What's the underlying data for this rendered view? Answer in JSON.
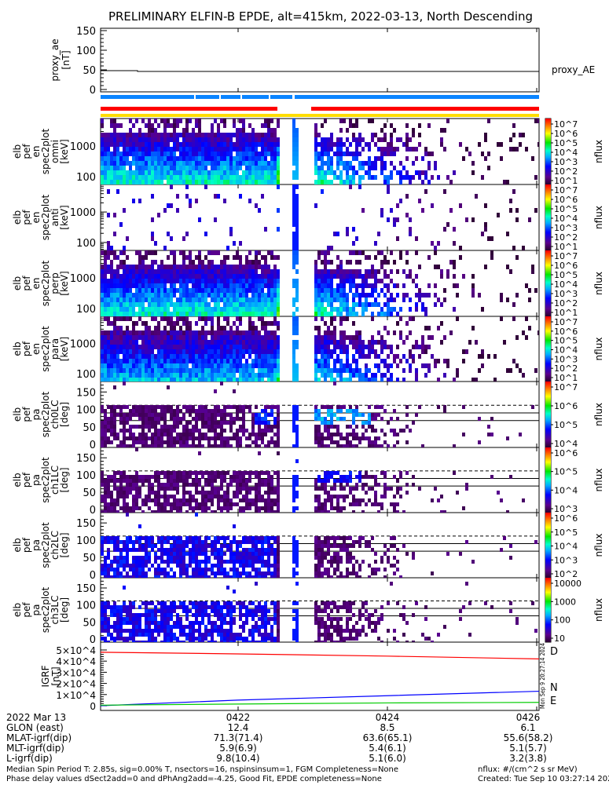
{
  "title": "PRELIMINARY ELFIN-B EPDE, alt=415km, 2022-03-13, North Descending",
  "colors": {
    "blue_bar": "#0a84ff",
    "red_bar": "#ff0000",
    "yellow_bar": "#ffdd00",
    "D": "#ff0000",
    "N": "#0000ff",
    "E": "#00cc00"
  },
  "proxy_panel": {
    "ylabel": [
      "proxy_ae",
      "[nT]"
    ],
    "yticks": [
      "0",
      "50",
      "100",
      "150"
    ],
    "legend": "proxy_AE"
  },
  "energy_panels": [
    {
      "label": [
        "elb",
        "pef",
        "en",
        "spec2plot",
        "omni",
        "[keV]"
      ],
      "yticks": [
        "100",
        "1000"
      ],
      "cbar_ticks": [
        "10^1",
        "10^2",
        "10^3",
        "10^4",
        "10^5",
        "10^6",
        "10^7"
      ],
      "cbar_label": "nflux"
    },
    {
      "label": [
        "elb",
        "pef",
        "en",
        "spec2plot",
        "anti",
        "[keV]"
      ],
      "yticks": [
        "100",
        "1000"
      ],
      "cbar_ticks": [
        "10^1",
        "10^2",
        "10^3",
        "10^4",
        "10^5",
        "10^6",
        "10^7"
      ],
      "cbar_label": "nflux"
    },
    {
      "label": [
        "elb",
        "pef",
        "en",
        "spec2plot",
        "perp",
        "[keV]"
      ],
      "yticks": [
        "100",
        "1000"
      ],
      "cbar_ticks": [
        "10^1",
        "10^2",
        "10^3",
        "10^4",
        "10^5",
        "10^6",
        "10^7"
      ],
      "cbar_label": "nflux"
    },
    {
      "label": [
        "elb",
        "pef",
        "en",
        "spec2plot",
        "para",
        "[keV]"
      ],
      "yticks": [
        "100",
        "1000"
      ],
      "cbar_ticks": [
        "10^1",
        "10^2",
        "10^3",
        "10^4",
        "10^5",
        "10^6",
        "10^7"
      ],
      "cbar_label": "nflux"
    }
  ],
  "pa_panels": [
    {
      "label": [
        "elb",
        "pef",
        "pa",
        "spec2plot",
        "ch0LC",
        "[deg]"
      ],
      "yticks": [
        "0",
        "50",
        "100",
        "150"
      ],
      "cbar_ticks": [
        "10^4",
        "10^5",
        "10^6",
        "10^7"
      ],
      "cbar_label": "nflux"
    },
    {
      "label": [
        "elb",
        "pef",
        "pa",
        "spec2plot",
        "ch1LC",
        "[deg]"
      ],
      "yticks": [
        "0",
        "50",
        "100",
        "150"
      ],
      "cbar_ticks": [
        "10^3",
        "10^4",
        "10^5",
        "10^6"
      ],
      "cbar_label": "nflux"
    },
    {
      "label": [
        "elb",
        "pef",
        "pa",
        "spec2plot",
        "ch2LC",
        "[deg]"
      ],
      "yticks": [
        "0",
        "50",
        "100",
        "150"
      ],
      "cbar_ticks": [
        "10^2",
        "10^3",
        "10^4",
        "10^5",
        "10^6"
      ],
      "cbar_label": "nflux"
    },
    {
      "label": [
        "elb",
        "pef",
        "pa",
        "spec2plot",
        "ch3LC",
        "[deg]"
      ],
      "yticks": [
        "0",
        "50",
        "100",
        "150"
      ],
      "cbar_ticks": [
        "10",
        "100",
        "1000",
        "10000"
      ],
      "cbar_label": "nflux"
    }
  ],
  "igrf_panel": {
    "ylabel": [
      "IGRF",
      "[nT]"
    ],
    "yticks": [
      "0",
      "1×10^4",
      "2×10^4",
      "3×10^4",
      "4×10^4",
      "5×10^4"
    ],
    "legend": [
      "D",
      "N",
      "E"
    ],
    "stamp": "Mon Sep  9 20:27:14 2024"
  },
  "footer": {
    "rows": [
      {
        "label": "2022 Mar 13",
        "values": [
          "0422",
          "0424",
          "0426"
        ]
      },
      {
        "label": "GLON (east)",
        "values": [
          "12.4",
          "8.5",
          "6.1"
        ]
      },
      {
        "label": "MLAT-igrf(dip)",
        "values": [
          "71.3(71.4)",
          "63.6(65.1)",
          "55.6(58.2)"
        ]
      },
      {
        "label": "MLT-igrf(dip)",
        "values": [
          "5.9(6.9)",
          "5.4(6.1)",
          "5.1(5.7)"
        ]
      },
      {
        "label": "L-igrf(dip)",
        "values": [
          "9.8(10.4)",
          "5.1(6.0)",
          "3.2(3.8)"
        ]
      }
    ],
    "note1": "Median Spin Period T: 2.85s, sig=0.00% T, nsectors=16, nspinsinsum=1, FGM Completeness=None",
    "note2": "Phase delay values dSect2add=0 and dPhAng2add=-4.25, Good Fit, EPDE completeness=None",
    "units": "nflux: #/(cm^2 s sr MeV)",
    "created": "Created: Tue Sep 10 03:27:14 2024"
  },
  "chart_data": {
    "type": "heatmap",
    "title": "PRELIMINARY ELFIN-B EPDE, alt=415km, 2022-03-13, North Descending",
    "x_ticks": [
      "0422",
      "0424",
      "0426"
    ],
    "data_gap": [
      "04:22:30",
      "04:23:20"
    ],
    "panels": [
      {
        "name": "proxy_ae",
        "type": "line",
        "ylim": [
          0,
          150
        ],
        "ylabel": "proxy_ae [nT]",
        "series": [
          {
            "name": "proxy_AE",
            "values": [
              48,
              46,
              46,
              46
            ]
          }
        ]
      },
      {
        "name": "en omni",
        "type": "heatmap",
        "ylabel": "[keV]",
        "ylim": [
          55,
          8000
        ],
        "yscale": "log",
        "zlim": [
          10,
          10000000.0
        ],
        "zlabel": "nflux"
      },
      {
        "name": "en anti",
        "type": "heatmap",
        "ylabel": "[keV]",
        "ylim": [
          55,
          8000
        ],
        "yscale": "log",
        "zlim": [
          10,
          10000000.0
        ],
        "zlabel": "nflux"
      },
      {
        "name": "en perp",
        "type": "heatmap",
        "ylabel": "[keV]",
        "ylim": [
          55,
          8000
        ],
        "yscale": "log",
        "zlim": [
          10,
          10000000.0
        ],
        "zlabel": "nflux"
      },
      {
        "name": "en para",
        "type": "heatmap",
        "ylabel": "[keV]",
        "ylim": [
          55,
          8000
        ],
        "yscale": "log",
        "zlim": [
          10,
          10000000.0
        ],
        "zlabel": "nflux"
      },
      {
        "name": "pa ch0LC",
        "type": "heatmap",
        "ylabel": "[deg]",
        "ylim": [
          0,
          180
        ],
        "zlim": [
          3000,
          10000000.0
        ]
      },
      {
        "name": "pa ch1LC",
        "type": "heatmap",
        "ylabel": "[deg]",
        "ylim": [
          0,
          180
        ],
        "zlim": [
          300,
          3000000.0
        ]
      },
      {
        "name": "pa ch2LC",
        "type": "heatmap",
        "ylabel": "[deg]",
        "ylim": [
          0,
          180
        ],
        "zlim": [
          100,
          1000000.0
        ]
      },
      {
        "name": "pa ch3LC",
        "type": "heatmap",
        "ylabel": "[deg]",
        "ylim": [
          0,
          180
        ],
        "zlim": [
          10,
          10000
        ]
      },
      {
        "name": "IGRF",
        "type": "line",
        "ylim": [
          0,
          50000
        ],
        "ylabel": "IGRF [nT]",
        "series": [
          {
            "name": "D",
            "values": [
              48000,
              46500,
              44500,
              42000
            ]
          },
          {
            "name": "N",
            "values": [
              0,
              5000,
              9000,
              13000
            ]
          },
          {
            "name": "E",
            "values": [
              500,
              1500,
              2500,
              3000
            ]
          }
        ]
      }
    ]
  }
}
